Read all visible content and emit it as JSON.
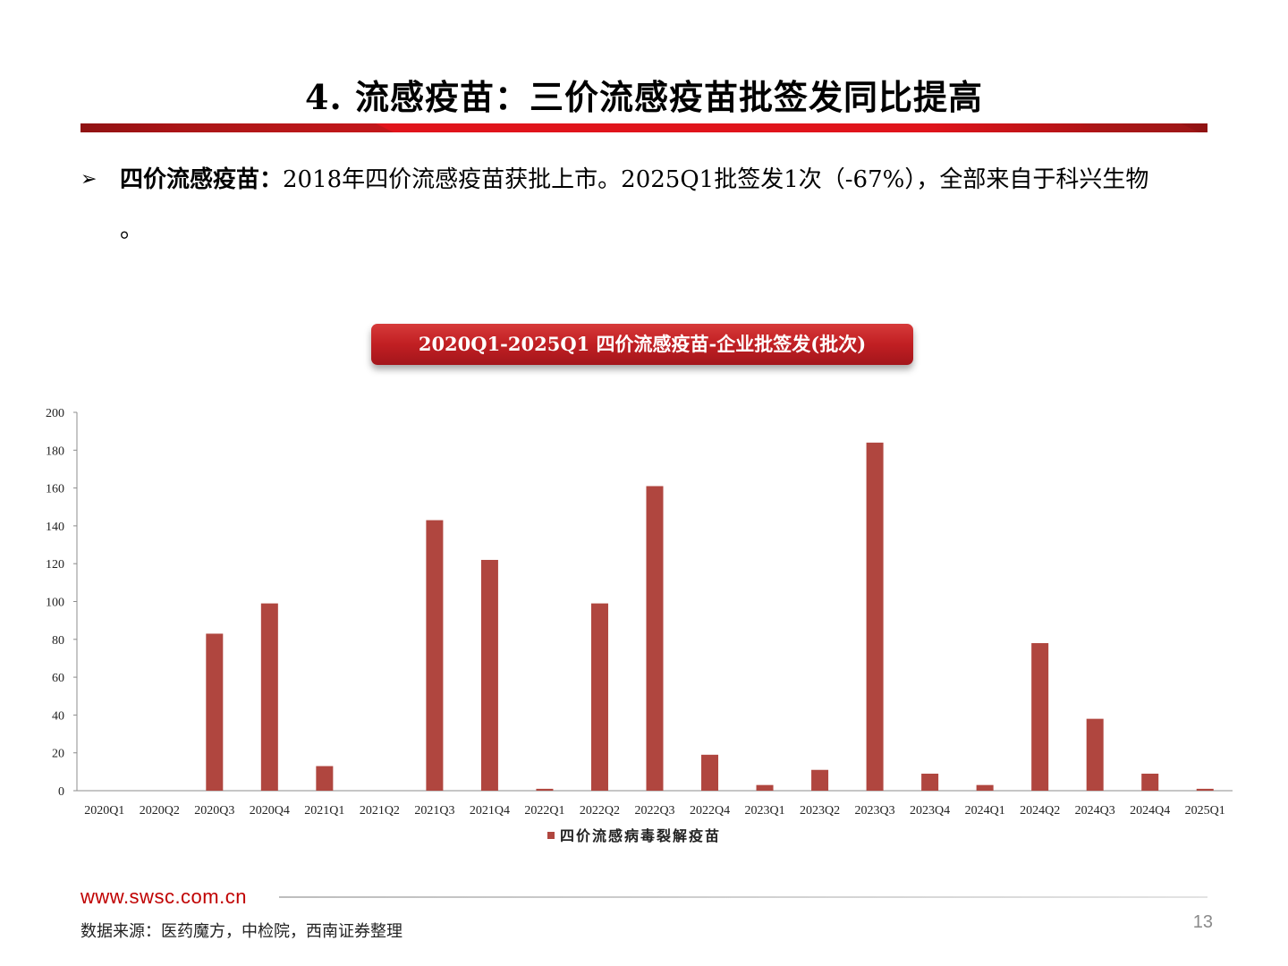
{
  "header": {
    "title": "4. 流感疫苗：三价流感疫苗批签发同比提高"
  },
  "bullet": {
    "mark": "➢",
    "term": "四价流感疫苗：",
    "text": "2018年四价流感疫苗获批上市。2025Q1批签发1次（-67%），全部来自于科兴生物",
    "continuation": "。"
  },
  "chart_title": "2020Q1-2025Q1 四价流感疫苗-企业批签发(批次)",
  "chart_data": {
    "type": "bar",
    "categories": [
      "2020Q1",
      "2020Q2",
      "2020Q3",
      "2020Q4",
      "2021Q1",
      "2021Q2",
      "2021Q3",
      "2021Q4",
      "2022Q1",
      "2022Q2",
      "2022Q3",
      "2022Q4",
      "2023Q1",
      "2023Q2",
      "2023Q3",
      "2023Q4",
      "2024Q1",
      "2024Q2",
      "2024Q3",
      "2024Q4",
      "2025Q1"
    ],
    "series": [
      {
        "name": "四价流感病毒裂解疫苗",
        "values": [
          0,
          0,
          83,
          99,
          13,
          0,
          143,
          122,
          1,
          99,
          161,
          19,
          3,
          11,
          184,
          9,
          3,
          78,
          38,
          9,
          1
        ]
      }
    ],
    "y_ticks": [
      "0",
      "20",
      "40",
      "60",
      "80",
      "100",
      "120",
      "140",
      "160",
      "180",
      "200"
    ],
    "ylim": [
      0,
      200
    ],
    "grid": false,
    "legend": "bottom-center",
    "bar_color": "#b0463f"
  },
  "footer": {
    "url": "www.swsc.com.cn",
    "source": "数据来源：医药魔方，中检院，西南证券整理",
    "page_number": "13"
  },
  "colors": {
    "accent_red": "#c00000",
    "rule_dark": "#8f1313"
  }
}
